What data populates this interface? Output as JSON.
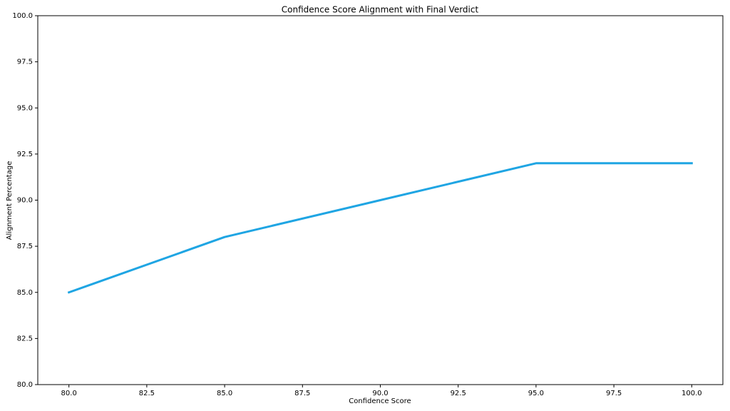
{
  "chart_data": {
    "type": "line",
    "title": "Confidence Score Alignment with Final Verdict",
    "x_label": "Confidence Score",
    "y_label": "Alignment Percentage",
    "x": [
      80,
      85,
      90,
      95,
      100
    ],
    "values": [
      85,
      88,
      90,
      92,
      92
    ],
    "color": "#1fa5e3",
    "xlim": [
      79,
      101
    ],
    "ylim": [
      80,
      100
    ],
    "xticks": [
      {
        "value": 80,
        "label": "80.0"
      },
      {
        "value": 82.5,
        "label": "82.5"
      },
      {
        "value": 85,
        "label": "85.0"
      },
      {
        "value": 87.5,
        "label": "87.5"
      },
      {
        "value": 90,
        "label": "90.0"
      },
      {
        "value": 92.5,
        "label": "92.5"
      },
      {
        "value": 95,
        "label": "95.0"
      },
      {
        "value": 97.5,
        "label": "97.5"
      },
      {
        "value": 100,
        "label": "100.0"
      }
    ],
    "yticks": [
      {
        "value": 80,
        "label": "80.0"
      },
      {
        "value": 82.5,
        "label": "82.5"
      },
      {
        "value": 85,
        "label": "85.0"
      },
      {
        "value": 87.5,
        "label": "87.5"
      },
      {
        "value": 90,
        "label": "90.0"
      },
      {
        "value": 92.5,
        "label": "92.5"
      },
      {
        "value": 95,
        "label": "95.0"
      },
      {
        "value": 97.5,
        "label": "97.5"
      },
      {
        "value": 100,
        "label": "100.0"
      }
    ],
    "grid": false
  }
}
